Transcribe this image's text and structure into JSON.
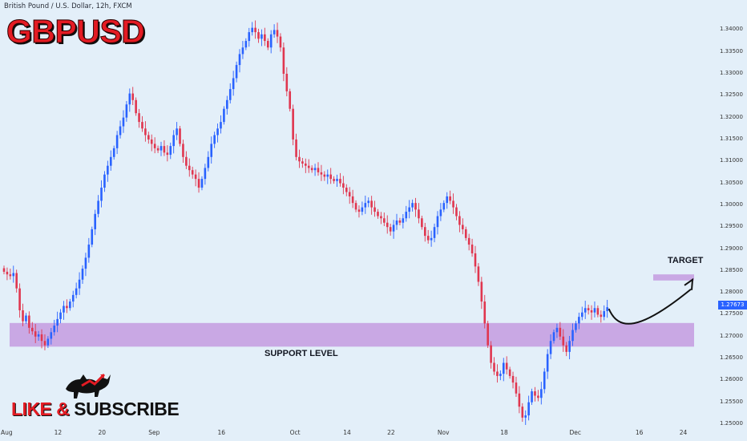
{
  "header": {
    "symbol_line": "British Pound / U.S. Dollar, 12h, FXCM",
    "title": "GBPUSD"
  },
  "annotations": {
    "support": "SUPPORT LEVEL",
    "target": "TARGET",
    "cta_like": "LIKE & ",
    "cta_subscribe": "SUBSCRIBE"
  },
  "colors": {
    "up": "#2962ff",
    "down": "#e0364f",
    "zone": "#c49be0",
    "background": "#e3eff9",
    "title": "#e31b23"
  },
  "icons": {
    "logo": "bull-bear-icon"
  },
  "current_price": "1.27673",
  "chart_data": {
    "type": "candlestick",
    "y_axis": {
      "range": [
        1.25,
        1.343
      ],
      "tick_labels": [
        "1.34000",
        "1.33500",
        "1.33000",
        "1.32500",
        "1.32000",
        "1.31500",
        "1.31000",
        "1.30500",
        "1.30000",
        "1.29500",
        "1.29000",
        "1.28500",
        "1.28000",
        "1.27500",
        "1.27000",
        "1.26500",
        "1.26000",
        "1.25500",
        "1.25000"
      ]
    },
    "x_axis": {
      "tick_labels": [
        {
          "label": "Aug",
          "candle": 0
        },
        {
          "label": "12",
          "candle": 17
        },
        {
          "label": "20",
          "candle": 31
        },
        {
          "label": "Sep",
          "candle": 47
        },
        {
          "label": "16",
          "candle": 69
        },
        {
          "label": "Oct",
          "candle": 92
        },
        {
          "label": "14",
          "candle": 109
        },
        {
          "label": "22",
          "candle": 123
        },
        {
          "label": "Nov",
          "candle": 139
        },
        {
          "label": "18",
          "candle": 159
        },
        {
          "label": "Dec",
          "candle": 181
        },
        {
          "label": "16",
          "candle": 202
        },
        {
          "label": "24",
          "candle": 216
        }
      ]
    },
    "support_zone": [
      1.2677,
      1.2731
    ],
    "target_zone": [
      1.2828,
      1.2842
    ],
    "close_series": [
      1.2848,
      1.2842,
      1.2838,
      1.2845,
      1.281,
      1.276,
      1.2735,
      1.2748,
      1.272,
      1.2712,
      1.27,
      1.2705,
      1.269,
      1.268,
      1.2695,
      1.271,
      1.2725,
      1.274,
      1.2755,
      1.277,
      1.2765,
      1.278,
      1.2795,
      1.281,
      1.283,
      1.2855,
      1.288,
      1.291,
      1.2945,
      1.298,
      1.301,
      1.304,
      1.307,
      1.309,
      1.311,
      1.313,
      1.316,
      1.318,
      1.32,
      1.323,
      1.3255,
      1.324,
      1.321,
      1.319,
      1.3175,
      1.316,
      1.315,
      1.314,
      1.313,
      1.3125,
      1.3135,
      1.312,
      1.3115,
      1.3135,
      1.316,
      1.3175,
      1.314,
      1.311,
      1.309,
      1.308,
      1.307,
      1.306,
      1.304,
      1.306,
      1.3085,
      1.311,
      1.314,
      1.316,
      1.3175,
      1.319,
      1.322,
      1.324,
      1.3265,
      1.329,
      1.332,
      1.3345,
      1.336,
      1.3375,
      1.3395,
      1.3405,
      1.3395,
      1.338,
      1.339,
      1.3375,
      1.336,
      1.339,
      1.34,
      1.3385,
      1.336,
      1.33,
      1.326,
      1.322,
      1.315,
      1.311,
      1.31,
      1.3095,
      1.309,
      1.3085,
      1.308,
      1.3085,
      1.3075,
      1.307,
      1.3065,
      1.307,
      1.306,
      1.3055,
      1.306,
      1.305,
      1.304,
      1.303,
      1.302,
      1.3005,
      1.299,
      1.2985,
      1.2995,
      1.3005,
      1.301,
      1.2995,
      1.2985,
      1.2975,
      1.297,
      1.296,
      1.295,
      1.294,
      1.2955,
      1.2965,
      1.296,
      1.297,
      1.2985,
      1.2995,
      1.3005,
      1.299,
      1.297,
      1.295,
      1.293,
      1.292,
      1.2925,
      1.295,
      1.2975,
      1.299,
      1.3005,
      1.302,
      1.301,
      1.2995,
      1.2975,
      1.2955,
      1.2945,
      1.2925,
      1.291,
      1.289,
      1.286,
      1.2825,
      1.278,
      1.273,
      1.268,
      1.264,
      1.262,
      1.261,
      1.2615,
      1.264,
      1.2625,
      1.261,
      1.2595,
      1.257,
      1.254,
      1.2515,
      1.252,
      1.255,
      1.2575,
      1.2565,
      1.256,
      1.258,
      1.262,
      1.266,
      1.269,
      1.271,
      1.272,
      1.27,
      1.268,
      1.2665,
      1.269,
      1.2715,
      1.273,
      1.2745,
      1.2755,
      1.2765,
      1.276,
      1.2755,
      1.2765,
      1.275,
      1.2745,
      1.2758,
      1.2767
    ]
  }
}
